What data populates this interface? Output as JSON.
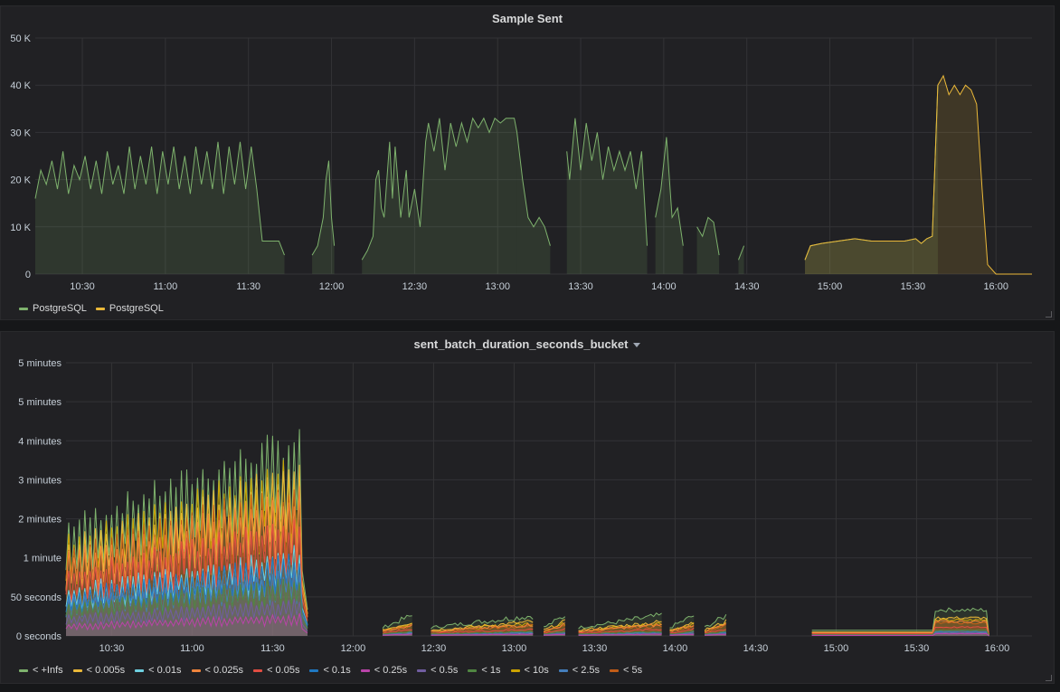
{
  "panels": [
    {
      "title": "Sample Sent",
      "has_menu_caret": false,
      "chart_data": {
        "type": "line",
        "title": "Sample Sent",
        "x_range": [
          "10:13",
          "16:13"
        ],
        "x_ticks": [
          "10:30",
          "11:00",
          "11:30",
          "12:00",
          "12:30",
          "13:00",
          "13:30",
          "14:00",
          "14:30",
          "15:00",
          "15:30",
          "16:00"
        ],
        "y_ticks": [
          "0",
          "10 K",
          "20 K",
          "30 K",
          "40 K",
          "50 K"
        ],
        "ylim": [
          0,
          50000
        ],
        "grid": true,
        "legend_position": "bottom-left",
        "series": [
          {
            "name": "PostgreSQL",
            "color": "#7eb26d",
            "fill": true,
            "segments": [
              [
                [
                  "10:13",
                  16000
                ],
                [
                  "10:15",
                  22000
                ],
                [
                  "10:17",
                  19000
                ],
                [
                  "10:19",
                  24000
                ],
                [
                  "10:21",
                  18000
                ],
                [
                  "10:23",
                  26000
                ],
                [
                  "10:25",
                  17000
                ],
                [
                  "10:27",
                  23000
                ],
                [
                  "10:29",
                  20000
                ],
                [
                  "10:31",
                  25000
                ],
                [
                  "10:33",
                  18000
                ],
                [
                  "10:35",
                  24000
                ],
                [
                  "10:37",
                  17000
                ],
                [
                  "10:39",
                  26000
                ],
                [
                  "10:41",
                  19000
                ],
                [
                  "10:43",
                  23000
                ],
                [
                  "10:45",
                  17000
                ],
                [
                  "10:47",
                  27000
                ],
                [
                  "10:49",
                  18000
                ],
                [
                  "10:51",
                  25000
                ],
                [
                  "10:53",
                  19000
                ],
                [
                  "10:55",
                  27000
                ],
                [
                  "10:57",
                  17000
                ],
                [
                  "10:59",
                  26000
                ],
                [
                  "11:01",
                  19000
                ],
                [
                  "11:03",
                  27000
                ],
                [
                  "11:05",
                  18000
                ],
                [
                  "11:07",
                  25000
                ],
                [
                  "11:09",
                  17000
                ],
                [
                  "11:11",
                  27000
                ],
                [
                  "11:13",
                  19000
                ],
                [
                  "11:15",
                  26000
                ],
                [
                  "11:17",
                  18000
                ],
                [
                  "11:19",
                  28000
                ],
                [
                  "11:21",
                  17000
                ],
                [
                  "11:23",
                  27000
                ],
                [
                  "11:25",
                  19000
                ],
                [
                  "11:27",
                  28000
                ],
                [
                  "11:29",
                  18000
                ],
                [
                  "11:31",
                  27000
                ],
                [
                  "11:33",
                  18000
                ],
                [
                  "11:35",
                  7000
                ],
                [
                  "11:41",
                  7000
                ],
                [
                  "11:43",
                  4000
                ]
              ],
              [
                [
                  "11:53",
                  4000
                ],
                [
                  "11:55",
                  6000
                ],
                [
                  "11:57",
                  12000
                ],
                [
                  "11:58",
                  20000
                ],
                [
                  "11:59",
                  24000
                ],
                [
                  "12:00",
                  12000
                ],
                [
                  "12:01",
                  6000
                ]
              ],
              [
                [
                  "12:11",
                  3000
                ],
                [
                  "12:13",
                  5000
                ],
                [
                  "12:15",
                  8000
                ],
                [
                  "12:16",
                  20000
                ],
                [
                  "12:17",
                  22000
                ],
                [
                  "12:18",
                  14000
                ],
                [
                  "12:19",
                  12000
                ],
                [
                  "12:21",
                  28000
                ],
                [
                  "12:22",
                  16000
                ],
                [
                  "12:23",
                  27000
                ],
                [
                  "12:25",
                  12000
                ],
                [
                  "12:27",
                  22000
                ],
                [
                  "12:28",
                  12000
                ],
                [
                  "12:30",
                  18000
                ],
                [
                  "12:32",
                  10000
                ],
                [
                  "12:34",
                  28000
                ],
                [
                  "12:35",
                  32000
                ],
                [
                  "12:37",
                  26000
                ],
                [
                  "12:39",
                  33000
                ],
                [
                  "12:41",
                  22000
                ],
                [
                  "12:43",
                  32000
                ],
                [
                  "12:45",
                  27000
                ],
                [
                  "12:47",
                  32000
                ],
                [
                  "12:49",
                  28000
                ],
                [
                  "12:51",
                  33000
                ],
                [
                  "12:53",
                  31000
                ],
                [
                  "12:55",
                  33000
                ],
                [
                  "12:57",
                  30000
                ],
                [
                  "12:59",
                  33000
                ],
                [
                  "13:01",
                  32000
                ],
                [
                  "13:03",
                  33000
                ],
                [
                  "13:06",
                  33000
                ],
                [
                  "13:07",
                  30000
                ]
              ],
              [
                [
                  "13:07",
                  30000
                ],
                [
                  "13:09",
                  20000
                ],
                [
                  "13:11",
                  12000
                ],
                [
                  "13:13",
                  10000
                ],
                [
                  "13:15",
                  12000
                ],
                [
                  "13:17",
                  10000
                ],
                [
                  "13:19",
                  6000
                ]
              ],
              [
                [
                  "13:25",
                  26000
                ],
                [
                  "13:26",
                  20000
                ],
                [
                  "13:28",
                  33000
                ],
                [
                  "13:30",
                  22000
                ],
                [
                  "13:32",
                  32000
                ],
                [
                  "13:34",
                  24000
                ],
                [
                  "13:36",
                  30000
                ],
                [
                  "13:38",
                  20000
                ],
                [
                  "13:40",
                  27000
                ],
                [
                  "13:42",
                  22000
                ],
                [
                  "13:44",
                  26000
                ],
                [
                  "13:46",
                  22000
                ],
                [
                  "13:48",
                  26000
                ],
                [
                  "13:50",
                  18000
                ],
                [
                  "13:52",
                  26000
                ],
                [
                  "13:54",
                  6000
                ]
              ],
              [
                [
                  "13:57",
                  12000
                ],
                [
                  "13:59",
                  18000
                ],
                [
                  "14:01",
                  29000
                ],
                [
                  "14:03",
                  12000
                ],
                [
                  "14:05",
                  14000
                ],
                [
                  "14:07",
                  6000
                ]
              ],
              [
                [
                  "14:12",
                  10000
                ],
                [
                  "14:14",
                  8000
                ],
                [
                  "14:16",
                  12000
                ],
                [
                  "14:18",
                  11000
                ],
                [
                  "14:20",
                  4000
                ]
              ],
              [
                [
                  "14:27",
                  3000
                ],
                [
                  "14:29",
                  6000
                ]
              ],
              [
                [
                  "14:51",
                  3000
                ],
                [
                  "14:53",
                  6000
                ],
                [
                  "14:57",
                  6500
                ],
                [
                  "15:03",
                  7000
                ],
                [
                  "15:09",
                  7500
                ],
                [
                  "15:15",
                  7000
                ],
                [
                  "15:21",
                  7000
                ],
                [
                  "15:27",
                  7000
                ],
                [
                  "15:31",
                  7500
                ],
                [
                  "15:33",
                  6500
                ],
                [
                  "15:35",
                  7500
                ],
                [
                  "15:37",
                  8000
                ],
                [
                  "15:39",
                  40000
                ]
              ]
            ]
          },
          {
            "name": "PostgreSQL",
            "color": "#eab839",
            "fill": true,
            "segments": [
              [
                [
                  "14:51",
                  3000
                ],
                [
                  "14:53",
                  6000
                ],
                [
                  "14:57",
                  6500
                ],
                [
                  "15:03",
                  7000
                ],
                [
                  "15:09",
                  7500
                ],
                [
                  "15:15",
                  7000
                ],
                [
                  "15:21",
                  7000
                ],
                [
                  "15:27",
                  7000
                ],
                [
                  "15:31",
                  7500
                ],
                [
                  "15:33",
                  6500
                ],
                [
                  "15:35",
                  7500
                ],
                [
                  "15:37",
                  8000
                ],
                [
                  "15:39",
                  40000
                ],
                [
                  "15:41",
                  42000
                ],
                [
                  "15:43",
                  38000
                ],
                [
                  "15:45",
                  40000
                ],
                [
                  "15:47",
                  38000
                ],
                [
                  "15:49",
                  40000
                ],
                [
                  "15:51",
                  39000
                ],
                [
                  "15:53",
                  36000
                ],
                [
                  "15:55",
                  18000
                ],
                [
                  "15:57",
                  2000
                ],
                [
                  "16:00",
                  0
                ],
                [
                  "16:13",
                  0
                ]
              ]
            ]
          }
        ]
      },
      "legend": [
        {
          "label": "PostgreSQL",
          "color": "#7eb26d"
        },
        {
          "label": "PostgreSQL",
          "color": "#eab839"
        }
      ]
    },
    {
      "title": "sent_batch_duration_seconds_bucket",
      "has_menu_caret": true,
      "chart_data": {
        "type": "area",
        "title": "sent_batch_duration_seconds_bucket",
        "x_range": [
          "10:13",
          "16:13"
        ],
        "x_ticks": [
          "10:30",
          "11:00",
          "11:30",
          "12:00",
          "12:30",
          "13:00",
          "13:30",
          "14:00",
          "14:30",
          "15:00",
          "15:30",
          "16:00"
        ],
        "y_ticks": [
          "0 seconds",
          "50 seconds",
          "1 minute",
          "2 minutes",
          "3 minutes",
          "4 minutes",
          "5 minutes",
          "5 minutes"
        ],
        "ylim": [
          0,
          350
        ],
        "grid": true,
        "legend_position": "bottom-left",
        "series": [
          {
            "name": "< +Infs",
            "color": "#7eb26d",
            "peak": 280,
            "late": 36
          },
          {
            "name": "< 0.005s",
            "color": "#eab839",
            "peak": 230,
            "late": 25
          },
          {
            "name": "< 0.01s",
            "color": "#6ed0e0",
            "peak": 120,
            "late": 4
          },
          {
            "name": "< 0.025s",
            "color": "#ef843c",
            "peak": 200,
            "late": 20
          },
          {
            "name": "< 0.05s",
            "color": "#e24d42",
            "peak": 160,
            "late": 12
          },
          {
            "name": "< 0.1s",
            "color": "#1f78c1",
            "peak": 110,
            "late": 6
          },
          {
            "name": "< 0.25s",
            "color": "#ba43a9",
            "peak": 30,
            "late": 3
          },
          {
            "name": "< 0.5s",
            "color": "#705da0",
            "peak": 50,
            "late": 4
          },
          {
            "name": "< 1s",
            "color": "#508642",
            "peak": 80,
            "late": 8
          },
          {
            "name": "< 10s",
            "color": "#cca300",
            "peak": 240,
            "late": 22
          },
          {
            "name": "< 2.5s",
            "color": "#447ebc",
            "peak": 90,
            "late": 6
          },
          {
            "name": "< 5s",
            "color": "#c15c17",
            "peak": 210,
            "late": 18
          }
        ]
      },
      "legend": [
        {
          "label": "< +Infs",
          "color": "#7eb26d"
        },
        {
          "label": "< 0.005s",
          "color": "#eab839"
        },
        {
          "label": "< 0.01s",
          "color": "#6ed0e0"
        },
        {
          "label": "< 0.025s",
          "color": "#ef843c"
        },
        {
          "label": "< 0.05s",
          "color": "#e24d42"
        },
        {
          "label": "< 0.1s",
          "color": "#1f78c1"
        },
        {
          "label": "< 0.25s",
          "color": "#ba43a9"
        },
        {
          "label": "< 0.5s",
          "color": "#705da0"
        },
        {
          "label": "< 1s",
          "color": "#508642"
        },
        {
          "label": "< 10s",
          "color": "#cca300"
        },
        {
          "label": "< 2.5s",
          "color": "#447ebc"
        },
        {
          "label": "< 5s",
          "color": "#c15c17"
        }
      ]
    }
  ]
}
